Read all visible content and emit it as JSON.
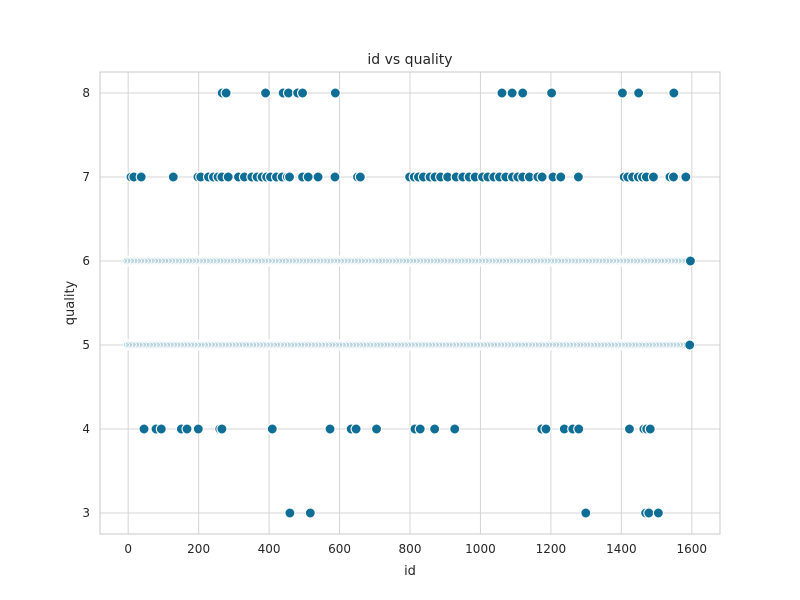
{
  "chart_data": {
    "type": "scatter",
    "title": "id vs quality",
    "xlabel": "id",
    "ylabel": "quality",
    "xlim": [
      -80,
      1680
    ],
    "ylim": [
      2.75,
      8.25
    ],
    "x_ticks": [
      0,
      200,
      400,
      600,
      800,
      1000,
      1200,
      1400,
      1600
    ],
    "y_ticks": [
      3,
      4,
      5,
      6,
      7,
      8
    ],
    "grid": true,
    "legend": "none",
    "marker_color": "#0f6e96",
    "series": [
      {
        "points": [
          {
            "x": 459,
            "y": 3
          },
          {
            "x": 517,
            "y": 3
          },
          {
            "x": 1299,
            "y": 3
          },
          {
            "x": 1469,
            "y": 3
          },
          {
            "x": 1478,
            "y": 3
          },
          {
            "x": 1505,
            "y": 3
          },
          {
            "x": 45,
            "y": 4
          },
          {
            "x": 79,
            "y": 4
          },
          {
            "x": 94,
            "y": 4
          },
          {
            "x": 151,
            "y": 4
          },
          {
            "x": 167,
            "y": 4
          },
          {
            "x": 199,
            "y": 4
          },
          {
            "x": 260,
            "y": 4
          },
          {
            "x": 266,
            "y": 4
          },
          {
            "x": 409,
            "y": 4
          },
          {
            "x": 573,
            "y": 4
          },
          {
            "x": 633,
            "y": 4
          },
          {
            "x": 647,
            "y": 4
          },
          {
            "x": 705,
            "y": 4
          },
          {
            "x": 814,
            "y": 4
          },
          {
            "x": 829,
            "y": 4
          },
          {
            "x": 870,
            "y": 4
          },
          {
            "x": 927,
            "y": 4
          },
          {
            "x": 1174,
            "y": 4
          },
          {
            "x": 1186,
            "y": 4
          },
          {
            "x": 1238,
            "y": 4
          },
          {
            "x": 1262,
            "y": 4
          },
          {
            "x": 1279,
            "y": 4
          },
          {
            "x": 1423,
            "y": 4
          },
          {
            "x": 1464,
            "y": 4
          },
          {
            "x": 1472,
            "y": 4
          },
          {
            "x": 1482,
            "y": 4
          },
          {
            "x": 8,
            "y": 7
          },
          {
            "x": 16,
            "y": 7
          },
          {
            "x": 37,
            "y": 7
          },
          {
            "x": 128,
            "y": 7
          },
          {
            "x": 198,
            "y": 7
          },
          {
            "x": 206,
            "y": 7
          },
          {
            "x": 228,
            "y": 7
          },
          {
            "x": 242,
            "y": 7
          },
          {
            "x": 255,
            "y": 7
          },
          {
            "x": 266,
            "y": 7
          },
          {
            "x": 284,
            "y": 7
          },
          {
            "x": 313,
            "y": 7
          },
          {
            "x": 330,
            "y": 7
          },
          {
            "x": 351,
            "y": 7
          },
          {
            "x": 366,
            "y": 7
          },
          {
            "x": 380,
            "y": 7
          },
          {
            "x": 393,
            "y": 7
          },
          {
            "x": 404,
            "y": 7
          },
          {
            "x": 421,
            "y": 7
          },
          {
            "x": 437,
            "y": 7
          },
          {
            "x": 452,
            "y": 7
          },
          {
            "x": 458,
            "y": 7
          },
          {
            "x": 495,
            "y": 7
          },
          {
            "x": 511,
            "y": 7
          },
          {
            "x": 539,
            "y": 7
          },
          {
            "x": 587,
            "y": 7
          },
          {
            "x": 651,
            "y": 7
          },
          {
            "x": 659,
            "y": 7
          },
          {
            "x": 799,
            "y": 7
          },
          {
            "x": 812,
            "y": 7
          },
          {
            "x": 824,
            "y": 7
          },
          {
            "x": 838,
            "y": 7
          },
          {
            "x": 857,
            "y": 7
          },
          {
            "x": 871,
            "y": 7
          },
          {
            "x": 887,
            "y": 7
          },
          {
            "x": 907,
            "y": 7
          },
          {
            "x": 931,
            "y": 7
          },
          {
            "x": 950,
            "y": 7
          },
          {
            "x": 968,
            "y": 7
          },
          {
            "x": 985,
            "y": 7
          },
          {
            "x": 1006,
            "y": 7
          },
          {
            "x": 1021,
            "y": 7
          },
          {
            "x": 1038,
            "y": 7
          },
          {
            "x": 1054,
            "y": 7
          },
          {
            "x": 1072,
            "y": 7
          },
          {
            "x": 1091,
            "y": 7
          },
          {
            "x": 1106,
            "y": 7
          },
          {
            "x": 1120,
            "y": 7
          },
          {
            "x": 1139,
            "y": 7
          },
          {
            "x": 1163,
            "y": 7
          },
          {
            "x": 1175,
            "y": 7
          },
          {
            "x": 1206,
            "y": 7
          },
          {
            "x": 1228,
            "y": 7
          },
          {
            "x": 1278,
            "y": 7
          },
          {
            "x": 1408,
            "y": 7
          },
          {
            "x": 1418,
            "y": 7
          },
          {
            "x": 1432,
            "y": 7
          },
          {
            "x": 1448,
            "y": 7
          },
          {
            "x": 1460,
            "y": 7
          },
          {
            "x": 1471,
            "y": 7
          },
          {
            "x": 1491,
            "y": 7
          },
          {
            "x": 1538,
            "y": 7
          },
          {
            "x": 1548,
            "y": 7
          },
          {
            "x": 1583,
            "y": 7
          },
          {
            "x": 267,
            "y": 8
          },
          {
            "x": 278,
            "y": 8
          },
          {
            "x": 390,
            "y": 8
          },
          {
            "x": 440,
            "y": 8
          },
          {
            "x": 455,
            "y": 8
          },
          {
            "x": 481,
            "y": 8
          },
          {
            "x": 495,
            "y": 8
          },
          {
            "x": 588,
            "y": 8
          },
          {
            "x": 1061,
            "y": 8
          },
          {
            "x": 1090,
            "y": 8
          },
          {
            "x": 1120,
            "y": 8
          },
          {
            "x": 1202,
            "y": 8
          },
          {
            "x": 1403,
            "y": 8
          },
          {
            "x": 1449,
            "y": 8
          },
          {
            "x": 1549,
            "y": 8
          }
        ]
      },
      {
        "x_start": 0,
        "x_end": 1598,
        "x_step": 4,
        "y": 6,
        "note_values": "dense continuous band of points at quality 6"
      },
      {
        "x_start": 2,
        "x_end": 1596,
        "x_step": 4,
        "y": 5,
        "note_values": "dense continuous band of points at quality 5"
      }
    ]
  }
}
